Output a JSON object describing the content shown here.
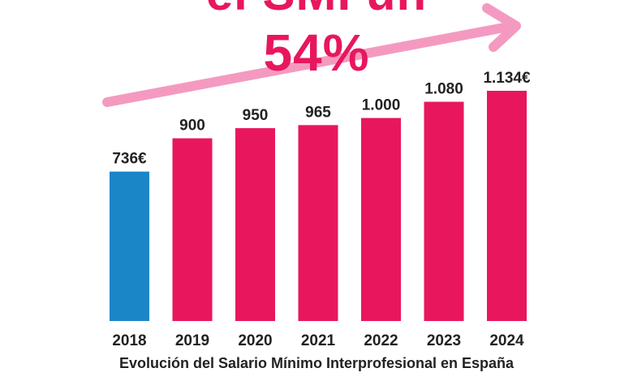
{
  "headline": {
    "line1": "el SMI un",
    "line2": "54%"
  },
  "caption": "Evolución del Salario Mínimo Interprofesional en España",
  "colors": {
    "primary_bar": "#e8175d",
    "highlight_bar": "#1a86c8",
    "arrow": "#f49ac0",
    "headline": "#e8175d",
    "text": "#222222"
  },
  "chart_data": {
    "type": "bar",
    "categories": [
      "2018",
      "2019",
      "2020",
      "2021",
      "2022",
      "2023",
      "2024"
    ],
    "values": [
      736,
      900,
      950,
      965,
      1000,
      1080,
      1134
    ],
    "data_labels": [
      "736€",
      "900",
      "950",
      "965",
      "1.000",
      "1.080",
      "1.134€"
    ],
    "highlight_index": 0,
    "title": "",
    "xlabel": "Evolución del Salario Mínimo Interprofesional en España",
    "ylabel": "",
    "ylim": [
      0,
      1134
    ],
    "grid": false,
    "legend": "none"
  }
}
